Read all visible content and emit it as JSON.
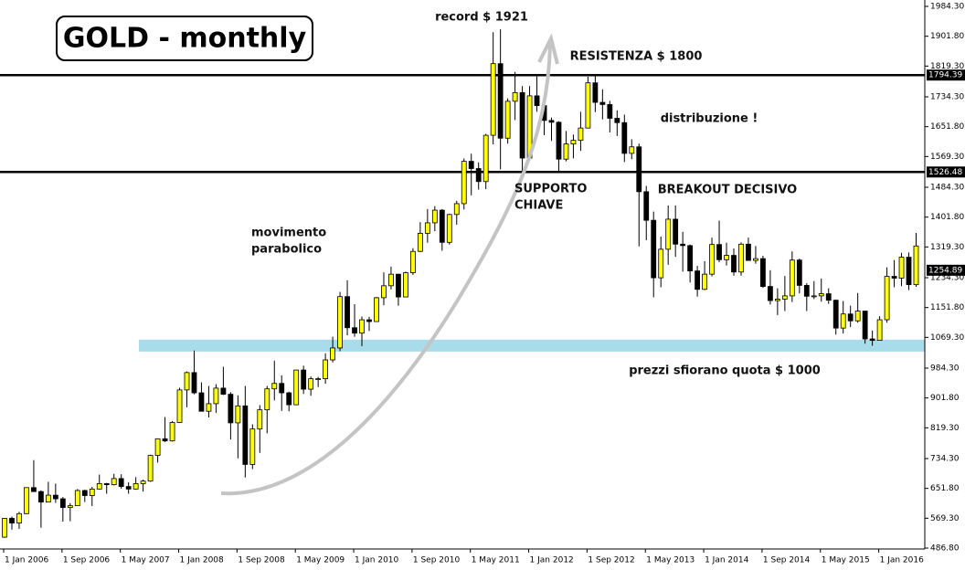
{
  "chart_data": {
    "type": "candlestick",
    "title": "GOLD - monthly",
    "annotations": [
      "record $ 1921",
      "RESISTENZA $ 1800",
      "distribuzione !",
      "BREAKOUT DECISIVO",
      "SUPPORTO",
      "CHIAVE",
      "movimento",
      "parabolico",
      "prezzi sfiorano quota $ 1000"
    ],
    "categories": [
      "1 Jan 2006",
      null,
      null,
      null,
      null,
      null,
      null,
      null,
      "1 Sep 2006",
      null,
      null,
      null,
      null,
      null,
      null,
      null,
      "1 May 2007",
      null,
      null,
      null,
      null,
      null,
      null,
      null,
      "1 Jan 2008",
      null,
      null,
      null,
      null,
      null,
      null,
      null,
      "1 Sep 2008",
      null,
      null,
      null,
      null,
      null,
      null,
      null,
      "1 May 2009",
      null,
      null,
      null,
      null,
      null,
      null,
      null,
      "1 Jan 2010",
      null,
      null,
      null,
      null,
      null,
      null,
      null,
      "1 Sep 2010",
      null,
      null,
      null,
      null,
      null,
      null,
      null,
      "1 May 2011",
      null,
      null,
      null,
      null,
      null,
      null,
      null,
      "1 Jan 2012",
      null,
      null,
      null,
      null,
      null,
      null,
      null,
      "1 Sep 2012",
      null,
      null,
      null,
      null,
      null,
      null,
      null,
      "1 May 2013",
      null,
      null,
      null,
      null,
      null,
      null,
      null,
      "1 Jan 2014",
      null,
      null,
      null,
      null,
      null,
      null,
      null,
      "1 Sep 2014",
      null,
      null,
      null,
      null,
      null,
      null,
      null,
      "1 May 2015",
      null,
      null,
      null,
      null,
      null,
      null,
      null,
      "1 Jan 2016",
      null,
      null,
      null,
      null,
      null
    ],
    "ohlc": [
      [
        517,
        570,
        515,
        569
      ],
      [
        569,
        574,
        538,
        556
      ],
      [
        556,
        587,
        540,
        582
      ],
      [
        582,
        654,
        581,
        654
      ],
      [
        654,
        730,
        642,
        643
      ],
      [
        643,
        646,
        543,
        614
      ],
      [
        614,
        670,
        613,
        633
      ],
      [
        633,
        665,
        612,
        623
      ],
      [
        623,
        628,
        560,
        599
      ],
      [
        599,
        611,
        561,
        604
      ],
      [
        604,
        650,
        603,
        646
      ],
      [
        646,
        648,
        614,
        632
      ],
      [
        632,
        656,
        603,
        650
      ],
      [
        650,
        690,
        649,
        665
      ],
      [
        665,
        667,
        637,
        662
      ],
      [
        662,
        692,
        660,
        679
      ],
      [
        679,
        691,
        651,
        657
      ],
      [
        657,
        669,
        637,
        650
      ],
      [
        650,
        683,
        648,
        665
      ],
      [
        665,
        676,
        643,
        672
      ],
      [
        672,
        745,
        670,
        743
      ],
      [
        743,
        790,
        723,
        789
      ],
      [
        789,
        849,
        780,
        783
      ],
      [
        783,
        838,
        781,
        834
      ],
      [
        834,
        930,
        834,
        924
      ],
      [
        924,
        975,
        876,
        972
      ],
      [
        972,
        1033,
        912,
        916
      ],
      [
        916,
        945,
        865,
        865
      ],
      [
        865,
        935,
        848,
        886
      ],
      [
        886,
        940,
        861,
        929
      ],
      [
        929,
        988,
        910,
        912
      ],
      [
        912,
        918,
        787,
        833
      ],
      [
        833,
        909,
        735,
        880
      ],
      [
        880,
        935,
        682,
        718
      ],
      [
        718,
        829,
        705,
        816
      ],
      [
        816,
        882,
        750,
        869
      ],
      [
        869,
        935,
        804,
        927
      ],
      [
        927,
        1005,
        895,
        942
      ],
      [
        942,
        964,
        866,
        916
      ],
      [
        916,
        919,
        865,
        883
      ],
      [
        883,
        980,
        882,
        979
      ],
      [
        979,
        991,
        913,
        926
      ],
      [
        926,
        961,
        908,
        955
      ],
      [
        955,
        960,
        932,
        955
      ],
      [
        955,
        1025,
        941,
        1007
      ],
      [
        1007,
        1071,
        1000,
        1040
      ],
      [
        1040,
        1195,
        1031,
        1182
      ],
      [
        1182,
        1227,
        1075,
        1096
      ],
      [
        1096,
        1161,
        1071,
        1081
      ],
      [
        1081,
        1127,
        1045,
        1118
      ],
      [
        1118,
        1126,
        1087,
        1113
      ],
      [
        1113,
        1181,
        1113,
        1179
      ],
      [
        1179,
        1249,
        1158,
        1212
      ],
      [
        1212,
        1265,
        1202,
        1244
      ],
      [
        1244,
        1245,
        1157,
        1181
      ],
      [
        1181,
        1251,
        1180,
        1248
      ],
      [
        1248,
        1316,
        1242,
        1307
      ],
      [
        1307,
        1388,
        1305,
        1357
      ],
      [
        1357,
        1424,
        1331,
        1386
      ],
      [
        1386,
        1432,
        1363,
        1421
      ],
      [
        1421,
        1424,
        1309,
        1332
      ],
      [
        1332,
        1411,
        1326,
        1409
      ],
      [
        1409,
        1447,
        1381,
        1439
      ],
      [
        1439,
        1564,
        1423,
        1556
      ],
      [
        1556,
        1577,
        1462,
        1536
      ],
      [
        1536,
        1553,
        1478,
        1500
      ],
      [
        1500,
        1632,
        1479,
        1628
      ],
      [
        1628,
        1913,
        1603,
        1826
      ],
      [
        1826,
        1921,
        1534,
        1620
      ],
      [
        1620,
        1730,
        1605,
        1722
      ],
      [
        1722,
        1803,
        1670,
        1746
      ],
      [
        1746,
        1764,
        1523,
        1565
      ],
      [
        1565,
        1764,
        1563,
        1737
      ],
      [
        1737,
        1791,
        1693,
        1710
      ],
      [
        1710,
        1718,
        1628,
        1669
      ],
      [
        1669,
        1677,
        1612,
        1664
      ],
      [
        1664,
        1667,
        1527,
        1562
      ],
      [
        1562,
        1640,
        1556,
        1604
      ],
      [
        1604,
        1630,
        1564,
        1614
      ],
      [
        1614,
        1693,
        1585,
        1648
      ],
      [
        1648,
        1790,
        1647,
        1773
      ],
      [
        1773,
        1796,
        1692,
        1719
      ],
      [
        1719,
        1755,
        1672,
        1713
      ],
      [
        1713,
        1723,
        1636,
        1675
      ],
      [
        1675,
        1697,
        1626,
        1663
      ],
      [
        1663,
        1685,
        1554,
        1578
      ],
      [
        1578,
        1617,
        1562,
        1596
      ],
      [
        1596,
        1605,
        1321,
        1472
      ],
      [
        1472,
        1488,
        1338,
        1393
      ],
      [
        1393,
        1417,
        1180,
        1234
      ],
      [
        1234,
        1348,
        1208,
        1313
      ],
      [
        1313,
        1434,
        1270,
        1396
      ],
      [
        1396,
        1434,
        1292,
        1327
      ],
      [
        1327,
        1361,
        1251,
        1323
      ],
      [
        1323,
        1326,
        1221,
        1253
      ],
      [
        1253,
        1267,
        1182,
        1202
      ],
      [
        1202,
        1280,
        1200,
        1244
      ],
      [
        1244,
        1345,
        1238,
        1326
      ],
      [
        1326,
        1392,
        1277,
        1284
      ],
      [
        1284,
        1331,
        1268,
        1296
      ],
      [
        1296,
        1315,
        1240,
        1250
      ],
      [
        1250,
        1332,
        1240,
        1327
      ],
      [
        1327,
        1345,
        1281,
        1282
      ],
      [
        1282,
        1322,
        1273,
        1287
      ],
      [
        1287,
        1295,
        1206,
        1210
      ],
      [
        1210,
        1255,
        1160,
        1171
      ],
      [
        1171,
        1205,
        1131,
        1175
      ],
      [
        1175,
        1239,
        1142,
        1184
      ],
      [
        1184,
        1307,
        1167,
        1283
      ],
      [
        1283,
        1287,
        1191,
        1213
      ],
      [
        1213,
        1219,
        1142,
        1183
      ],
      [
        1183,
        1225,
        1175,
        1184
      ],
      [
        1184,
        1232,
        1168,
        1190
      ],
      [
        1190,
        1205,
        1162,
        1172
      ],
      [
        1172,
        1174,
        1077,
        1095
      ],
      [
        1095,
        1170,
        1080,
        1134
      ],
      [
        1134,
        1157,
        1098,
        1115
      ],
      [
        1115,
        1192,
        1110,
        1142
      ],
      [
        1142,
        1142,
        1052,
        1065
      ],
      [
        1065,
        1088,
        1046,
        1061
      ],
      [
        1061,
        1128,
        1060,
        1118
      ],
      [
        1118,
        1263,
        1110,
        1238
      ],
      [
        1238,
        1283,
        1208,
        1233
      ],
      [
        1233,
        1303,
        1211,
        1291
      ],
      [
        1291,
        1304,
        1200,
        1215
      ],
      [
        1215,
        1358,
        1209,
        1322
      ]
    ],
    "up_color": "#ffff00",
    "down_color": "#000000",
    "hlines": [
      1794.39,
      1526.48
    ],
    "last_price": 1254.89,
    "support_band": [
      1030,
      1063
    ],
    "band_color": "#a8dcea",
    "ylim": [
      486.8,
      1984.3
    ],
    "yticks": [
      {
        "value": 486.8,
        "label": "486.80"
      },
      {
        "value": 569.3,
        "label": "569.30"
      },
      {
        "value": 651.8,
        "label": "651.80"
      },
      {
        "value": 734.3,
        "label": "734.30"
      },
      {
        "value": 819.3,
        "label": "819.30"
      },
      {
        "value": 901.8,
        "label": "901.80"
      },
      {
        "value": 984.3,
        "label": "984.30"
      },
      {
        "value": 1069.3,
        "label": "1069.30"
      },
      {
        "value": 1151.8,
        "label": "1151.80"
      },
      {
        "value": 1234.3,
        "label": "1234.30"
      },
      {
        "value": 1319.3,
        "label": "1319.30"
      },
      {
        "value": 1401.8,
        "label": "1401.80"
      },
      {
        "value": 1484.3,
        "label": "1484.30"
      },
      {
        "value": 1569.3,
        "label": "1569.30"
      },
      {
        "value": 1651.8,
        "label": "1651.80"
      },
      {
        "value": 1734.3,
        "label": "1734.30"
      },
      {
        "value": 1819.3,
        "label": "1819.30"
      },
      {
        "value": 1901.8,
        "label": "1901.80"
      },
      {
        "value": 1984.3,
        "label": "1984.30"
      }
    ]
  }
}
